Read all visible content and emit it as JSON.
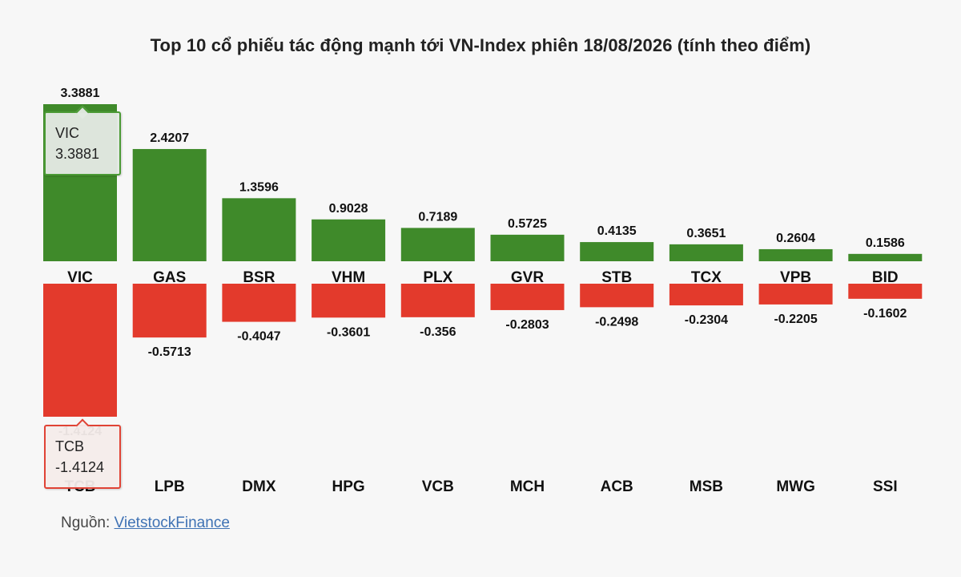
{
  "title": "Top 10 cổ phiếu tác động mạnh tới VN-Index phiên 18/08/2026 (tính theo điểm)",
  "colors": {
    "positive": "#3f8a2a",
    "negative": "#e33a2c",
    "text": "#222222"
  },
  "chart_data": [
    {
      "type": "bar",
      "name": "positive",
      "categories": [
        "VIC",
        "GAS",
        "BSR",
        "VHM",
        "PLX",
        "GVR",
        "STB",
        "TCX",
        "VPB",
        "BID"
      ],
      "values": [
        3.3881,
        2.4207,
        1.3596,
        0.9028,
        0.7189,
        0.5725,
        0.4135,
        0.3651,
        0.2604,
        0.1586
      ],
      "labels": [
        "3.3881",
        "2.4207",
        "1.3596",
        "0.9028",
        "0.7189",
        "0.5725",
        "0.4135",
        "0.3651",
        "0.2604",
        "0.1586"
      ],
      "color": "#3f8a2a"
    },
    {
      "type": "bar",
      "name": "negative",
      "categories": [
        "TCB",
        "LPB",
        "DMX",
        "HPG",
        "VCB",
        "MCH",
        "ACB",
        "MSB",
        "MWG",
        "SSI"
      ],
      "values": [
        -1.4124,
        -0.5713,
        -0.4047,
        -0.3601,
        -0.356,
        -0.2803,
        -0.2498,
        -0.2304,
        -0.2205,
        -0.1602
      ],
      "labels": [
        "-1.4124",
        "-0.5713",
        "-0.4047",
        "-0.3601",
        "-0.356",
        "-0.2803",
        "-0.2498",
        "-0.2304",
        "-0.2205",
        "-0.1602"
      ],
      "color": "#e33a2c"
    }
  ],
  "tooltips": {
    "positive": {
      "name": "VIC",
      "value": "3.3881"
    },
    "negative": {
      "name": "TCB",
      "value": "-1.4124"
    }
  },
  "source": {
    "prefix": "Nguồn: ",
    "link_text": "VietstockFinance"
  }
}
